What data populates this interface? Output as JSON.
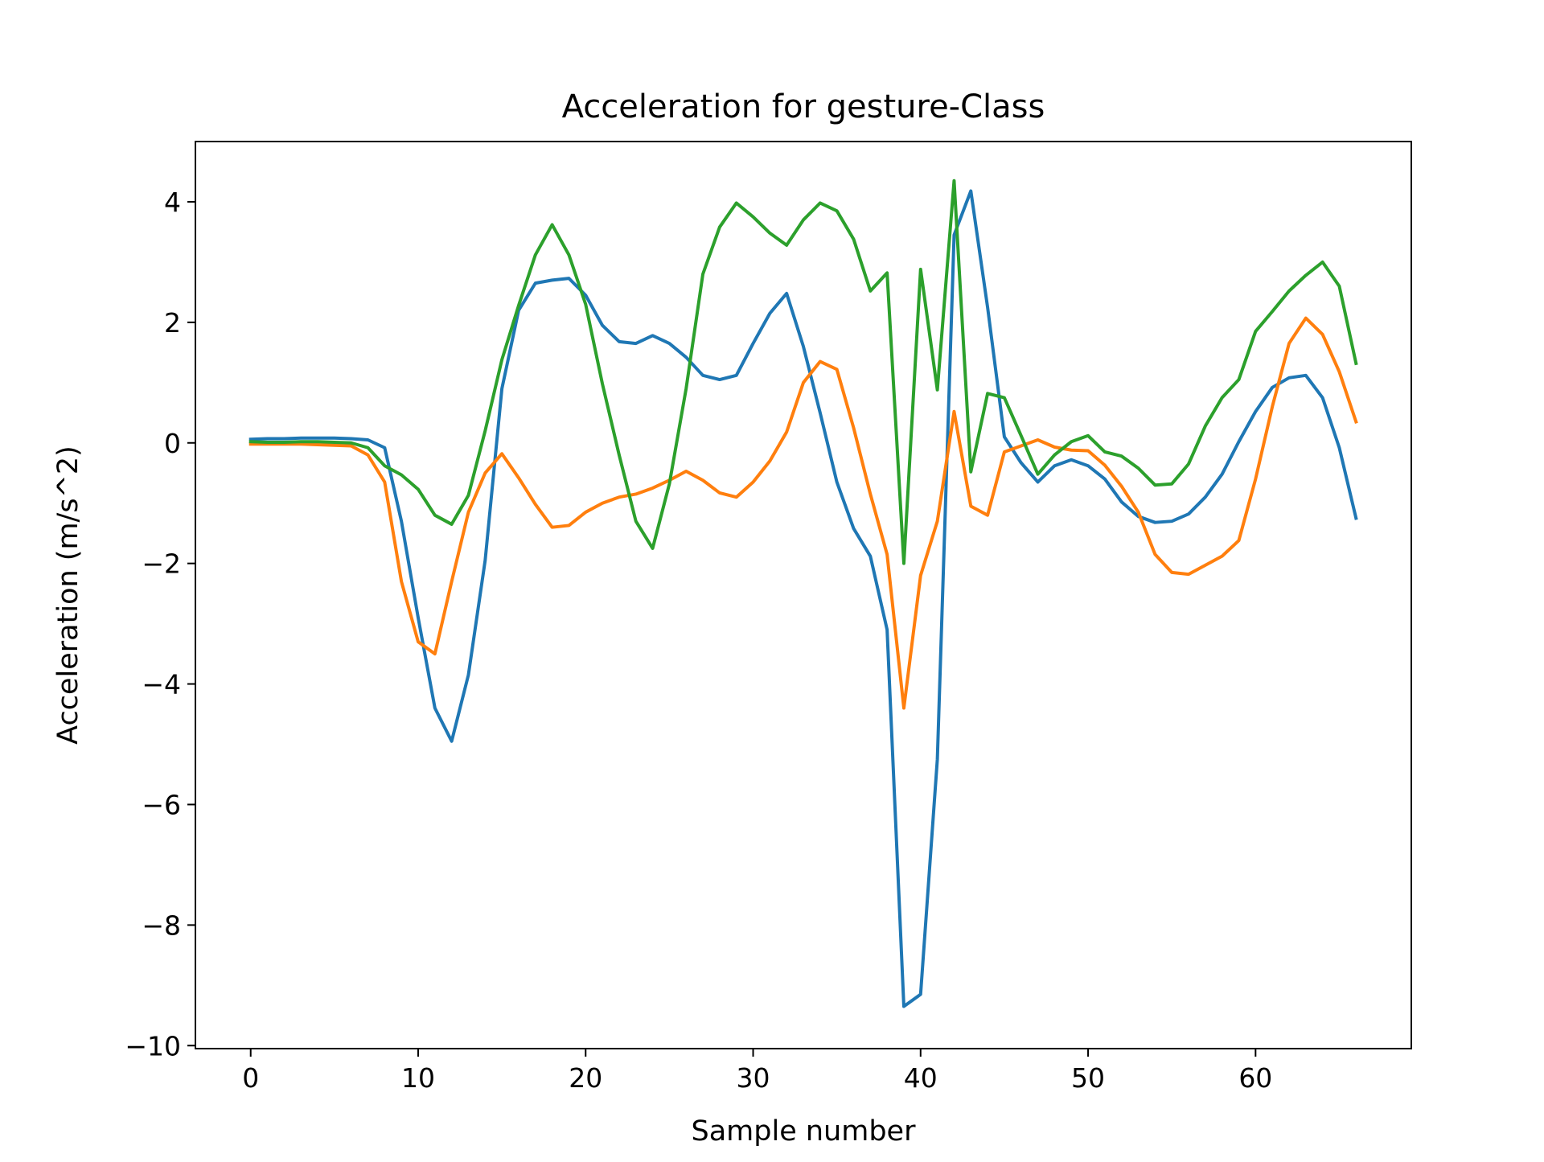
{
  "chart_data": {
    "type": "line",
    "title": "Acceleration for gesture-Class",
    "xlabel": "Sample number",
    "ylabel": "Acceleration (m/s^2)",
    "xlim": [
      -3.3,
      69.3
    ],
    "ylim": [
      -10.05,
      5.0
    ],
    "xticks": [
      0,
      10,
      20,
      30,
      40,
      50,
      60
    ],
    "xtick_labels": [
      "0",
      "10",
      "20",
      "30",
      "40",
      "50",
      "60"
    ],
    "yticks": [
      4,
      2,
      0,
      -2,
      -4,
      -6,
      -8,
      -10
    ],
    "ytick_labels": [
      "4",
      "2",
      "0",
      "−2",
      "−4",
      "−6",
      "−8",
      "−10"
    ],
    "grid": false,
    "legend": "none",
    "x": [
      0,
      1,
      2,
      3,
      4,
      5,
      6,
      7,
      8,
      9,
      10,
      11,
      12,
      13,
      14,
      15,
      16,
      17,
      18,
      19,
      20,
      21,
      22,
      23,
      24,
      25,
      26,
      27,
      28,
      29,
      30,
      31,
      32,
      33,
      34,
      35,
      36,
      37,
      38,
      39,
      40,
      41,
      42,
      43,
      44,
      45,
      46,
      47,
      48,
      49,
      50,
      51,
      52,
      53,
      54,
      55,
      56,
      57,
      58,
      59,
      60,
      61,
      62,
      63,
      64,
      65,
      66
    ],
    "series": [
      {
        "color": "#1f77b4",
        "values": [
          0.06,
          0.07,
          0.07,
          0.08,
          0.08,
          0.08,
          0.07,
          0.05,
          -0.08,
          -1.3,
          -2.9,
          -4.4,
          -4.95,
          -3.85,
          -1.95,
          0.9,
          2.2,
          2.65,
          2.7,
          2.73,
          2.45,
          1.95,
          1.68,
          1.65,
          1.78,
          1.65,
          1.42,
          1.12,
          1.05,
          1.12,
          1.65,
          2.15,
          2.48,
          1.6,
          0.5,
          -0.65,
          -1.42,
          -1.88,
          -3.1,
          -9.35,
          -9.15,
          -5.25,
          3.45,
          4.18,
          2.25,
          0.1,
          -0.33,
          -0.65,
          -0.38,
          -0.28,
          -0.38,
          -0.6,
          -0.98,
          -1.22,
          -1.32,
          -1.3,
          -1.18,
          -0.9,
          -0.52,
          0.02,
          0.52,
          0.92,
          1.08,
          1.12,
          0.75,
          -0.08,
          -1.25
        ]
      },
      {
        "color": "#ff7f0e",
        "values": [
          -0.02,
          -0.02,
          -0.02,
          -0.02,
          -0.03,
          -0.04,
          -0.05,
          -0.2,
          -0.65,
          -2.3,
          -3.3,
          -3.5,
          -2.3,
          -1.15,
          -0.5,
          -0.18,
          -0.58,
          -1.02,
          -1.4,
          -1.37,
          -1.15,
          -1.0,
          -0.9,
          -0.85,
          -0.75,
          -0.62,
          -0.47,
          -0.62,
          -0.83,
          -0.9,
          -0.65,
          -0.3,
          0.18,
          1.0,
          1.35,
          1.22,
          0.25,
          -0.85,
          -1.85,
          -4.4,
          -2.2,
          -1.3,
          0.52,
          -1.05,
          -1.2,
          -0.15,
          -0.05,
          0.05,
          -0.07,
          -0.12,
          -0.13,
          -0.37,
          -0.72,
          -1.15,
          -1.85,
          -2.15,
          -2.18,
          -2.03,
          -1.88,
          -1.62,
          -0.6,
          0.6,
          1.65,
          2.07,
          1.8,
          1.18,
          0.35
        ]
      },
      {
        "color": "#2ca02c",
        "values": [
          0.02,
          0.01,
          0.01,
          0.02,
          0.02,
          0.01,
          0.0,
          -0.08,
          -0.38,
          -0.53,
          -0.77,
          -1.2,
          -1.35,
          -0.87,
          0.2,
          1.38,
          2.28,
          3.12,
          3.62,
          3.12,
          2.3,
          0.98,
          -0.2,
          -1.3,
          -1.75,
          -0.68,
          0.9,
          2.8,
          3.58,
          3.98,
          3.75,
          3.48,
          3.28,
          3.7,
          3.98,
          3.85,
          3.38,
          2.52,
          2.82,
          -2.0,
          2.88,
          0.88,
          4.35,
          -0.48,
          0.82,
          0.75,
          0.12,
          -0.52,
          -0.2,
          0.02,
          0.12,
          -0.15,
          -0.22,
          -0.42,
          -0.7,
          -0.68,
          -0.35,
          0.28,
          0.75,
          1.05,
          1.85,
          2.18,
          2.52,
          2.78,
          3.0,
          2.6,
          1.32
        ]
      }
    ]
  }
}
